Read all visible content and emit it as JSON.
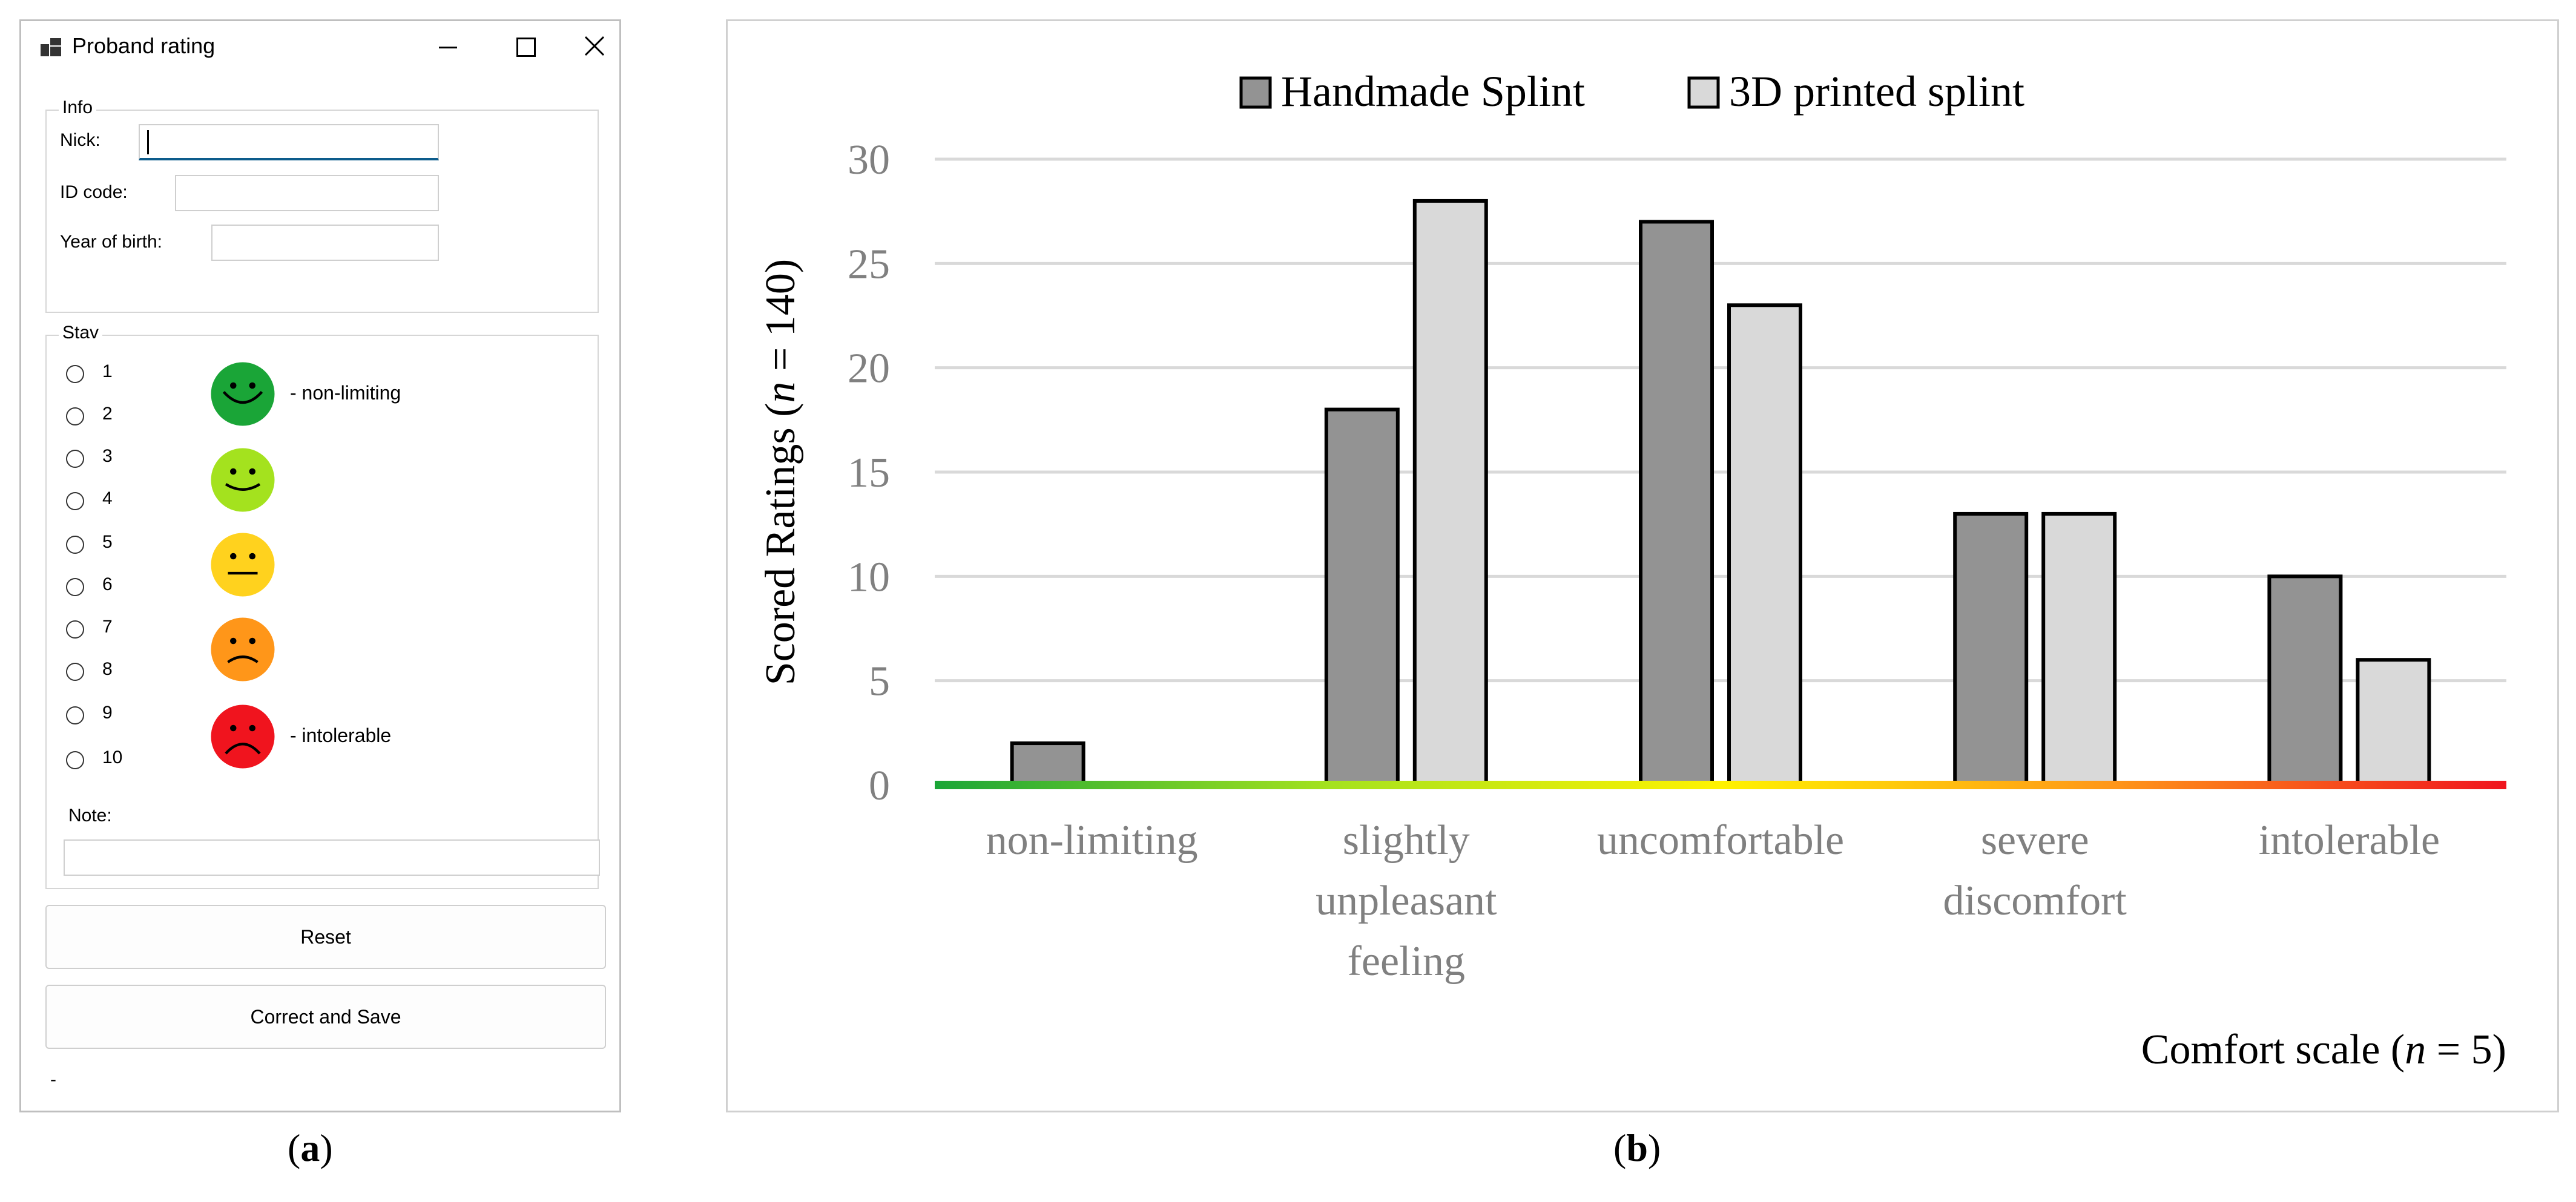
{
  "form": {
    "title": "Proband rating",
    "info_group": {
      "legend": "Info",
      "nick_label": "Nick:",
      "nick_value": "",
      "id_label": "ID code:",
      "id_value": "",
      "year_label": "Year of birth:",
      "year_value": ""
    },
    "stav_group": {
      "legend": "Stav",
      "options": [
        "1",
        "2",
        "3",
        "4",
        "5",
        "6",
        "7",
        "8",
        "9",
        "10"
      ],
      "selected": null,
      "faces": [
        {
          "icon": "very-happy-face-icon",
          "color": "#1aa537",
          "note": "- non-limiting"
        },
        {
          "icon": "happy-face-icon",
          "color": "#a4e21e",
          "note": ""
        },
        {
          "icon": "neutral-face-icon",
          "color": "#ffd21e",
          "note": ""
        },
        {
          "icon": "sad-face-icon",
          "color": "#ff9619",
          "note": ""
        },
        {
          "icon": "very-sad-face-icon",
          "color": "#f0141e",
          "note": "- intolerable"
        }
      ],
      "note_label": "Note:",
      "note_value": ""
    },
    "reset_label": "Reset",
    "save_label": "Correct and Save",
    "status_text": "-"
  },
  "captions": {
    "a_letter": "a",
    "b_letter": "b"
  },
  "chart_data": {
    "type": "bar",
    "categories": [
      "non-limiting",
      "slightly unpleasant feeling",
      "uncomfortable",
      "severe discomfort",
      "intolerable"
    ],
    "series": [
      {
        "name": "Handmade Splint",
        "values": [
          2,
          18,
          27,
          13,
          10
        ],
        "color": "#939393"
      },
      {
        "name": "3D printed splint",
        "values": [
          0,
          28,
          23,
          13,
          6
        ],
        "color": "#d9d9d9"
      }
    ],
    "ylabel_prefix": "Scored Ratings (",
    "ylabel_var": "n",
    "ylabel_suffix": " = 140)",
    "xlabel_prefix": "Comfort scale (",
    "xlabel_var": "n",
    "xlabel_suffix": " = 5)",
    "ylim": [
      0,
      30
    ],
    "yticks": [
      0,
      5,
      10,
      15,
      20,
      25,
      30
    ],
    "grid": true,
    "legend_position": "top-center",
    "baseline_gradient": [
      "#1aa537",
      "#a4e21e",
      "#fff200",
      "#ff9619",
      "#f0141e"
    ]
  }
}
